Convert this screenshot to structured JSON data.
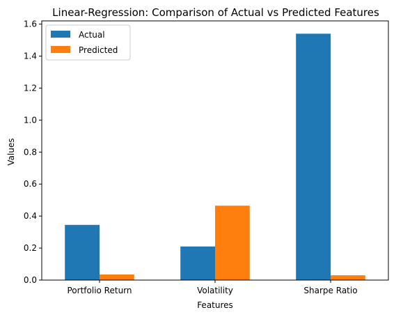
{
  "chart_data": {
    "type": "bar",
    "title": "Linear-Regression: Comparison of Actual vs Predicted Features",
    "xlabel": "Features",
    "ylabel": "Values",
    "categories": [
      "Portfolio Return",
      "Volatility",
      "Sharpe Ratio"
    ],
    "series": [
      {
        "name": "Actual",
        "color": "#1f77b4",
        "values": [
          0.345,
          0.21,
          1.54
        ]
      },
      {
        "name": "Predicted",
        "color": "#ff7f0e",
        "values": [
          0.035,
          0.465,
          0.03
        ]
      }
    ],
    "ylim": [
      0,
      1.62
    ],
    "yticks": [
      0.0,
      0.2,
      0.4,
      0.6,
      0.8,
      1.0,
      1.2,
      1.4,
      1.6
    ],
    "ytick_labels": [
      "0.0",
      "0.2",
      "0.4",
      "0.6",
      "0.8",
      "1.0",
      "1.2",
      "1.4",
      "1.6"
    ],
    "legend_position": "top-left",
    "grid": false
  }
}
